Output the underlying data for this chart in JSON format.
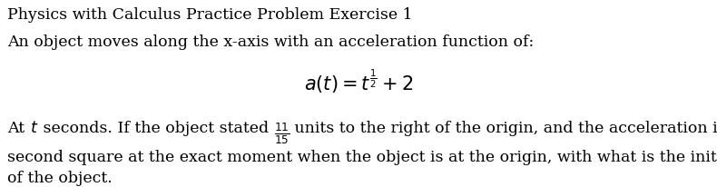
{
  "title": "Physics with Calculus Practice Problem Exercise 1",
  "line2": "An object moves along the x-axis with an acceleration function of:",
  "line5": "second square at the exact moment when the object is at the origin, with what is the initial velocity",
  "line6": "of the object.",
  "bg_color": "#ffffff",
  "text_color": "#000000",
  "font_size": 12.5,
  "font_size_formula": 15,
  "fig_width": 7.9,
  "fig_height": 2.06,
  "dpi": 100
}
